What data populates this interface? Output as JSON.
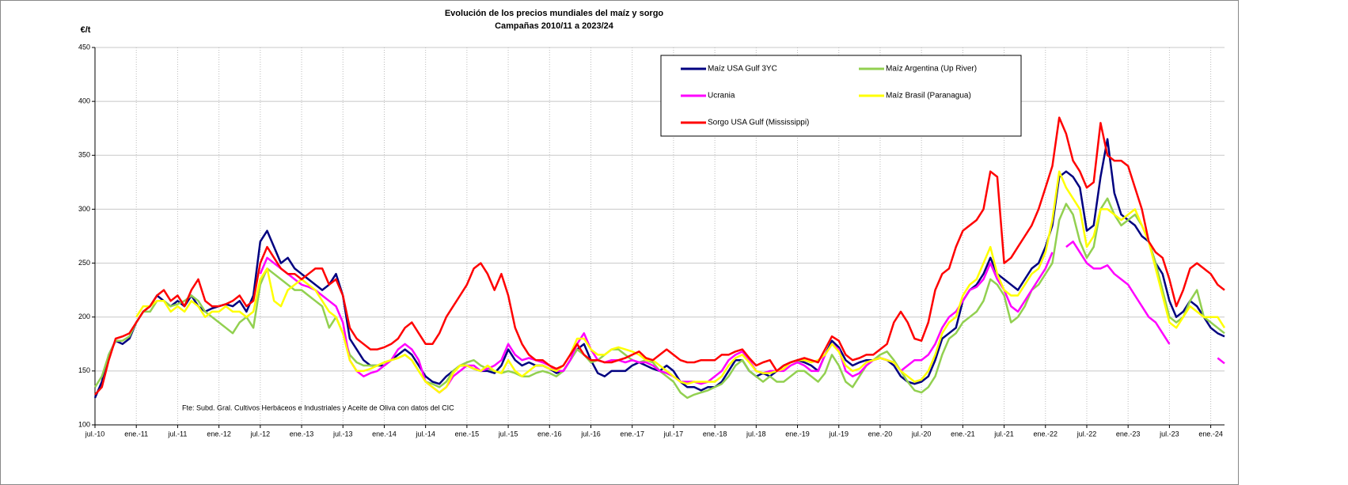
{
  "chart_data": {
    "type": "line",
    "title": "Evolución de los precios mundiales del maíz y sorgo",
    "subtitle": "Campañas 2010/11 a 2023/24",
    "y_label": "€/t",
    "note": "Fte: Subd. Gral. Cultivos Herbáceos e Industriales y Aceite de Oliva con datos del CIC",
    "ylim": [
      100,
      450
    ],
    "yticks": [
      100,
      150,
      200,
      250,
      300,
      350,
      400,
      450
    ],
    "grid": true,
    "legend": "top-right",
    "categories": [
      "jul.-10",
      null,
      null,
      null,
      null,
      null,
      "ene.-11",
      null,
      null,
      null,
      null,
      null,
      "jul.-11",
      null,
      null,
      null,
      null,
      null,
      "ene.-12",
      null,
      null,
      null,
      null,
      null,
      "jul.-12",
      null,
      null,
      null,
      null,
      null,
      "ene.-13",
      null,
      null,
      null,
      null,
      null,
      "jul.-13",
      null,
      null,
      null,
      null,
      null,
      "ene.-14",
      null,
      null,
      null,
      null,
      null,
      "jul.-14",
      null,
      null,
      null,
      null,
      null,
      "ene.-15",
      null,
      null,
      null,
      null,
      null,
      "jul.-15",
      null,
      null,
      null,
      null,
      null,
      "ene.-16",
      null,
      null,
      null,
      null,
      null,
      "jul.-16",
      null,
      null,
      null,
      null,
      null,
      "ene.-17",
      null,
      null,
      null,
      null,
      null,
      "jul.-17",
      null,
      null,
      null,
      null,
      null,
      "ene.-18",
      null,
      null,
      null,
      null,
      null,
      "jul.-18",
      null,
      null,
      null,
      null,
      null,
      "ene.-19",
      null,
      null,
      null,
      null,
      null,
      "jul.-19",
      null,
      null,
      null,
      null,
      null,
      "ene.-20",
      null,
      null,
      null,
      null,
      null,
      "jul.-20",
      null,
      null,
      null,
      null,
      null,
      "ene.-21",
      null,
      null,
      null,
      null,
      null,
      "jul.-21",
      null,
      null,
      null,
      null,
      null,
      "ene.-22",
      null,
      null,
      null,
      null,
      null,
      "jul.-22",
      null,
      null,
      null,
      null,
      null,
      "ene.-23",
      null,
      null,
      null,
      null,
      null,
      "jul.-23",
      null,
      null,
      null,
      null,
      null,
      "ene.-24",
      null,
      null
    ],
    "series": [
      {
        "name": "Maíz USA Gulf 3YC",
        "color": "#000080",
        "values": [
          125,
          140,
          165,
          178,
          175,
          180,
          195,
          205,
          210,
          220,
          215,
          210,
          215,
          210,
          220,
          210,
          205,
          208,
          210,
          212,
          210,
          215,
          205,
          220,
          270,
          280,
          265,
          250,
          255,
          245,
          240,
          235,
          230,
          225,
          230,
          240,
          220,
          180,
          170,
          160,
          155,
          155,
          155,
          160,
          165,
          170,
          165,
          155,
          145,
          140,
          138,
          145,
          150,
          155,
          155,
          152,
          150,
          150,
          148,
          155,
          170,
          160,
          155,
          158,
          155,
          155,
          152,
          148,
          150,
          160,
          170,
          175,
          160,
          148,
          145,
          150,
          150,
          150,
          155,
          158,
          155,
          152,
          150,
          155,
          150,
          140,
          135,
          135,
          132,
          135,
          135,
          140,
          150,
          160,
          160,
          150,
          145,
          148,
          145,
          150,
          155,
          158,
          160,
          158,
          155,
          150,
          165,
          178,
          172,
          160,
          155,
          158,
          160,
          160,
          162,
          160,
          155,
          145,
          140,
          138,
          140,
          145,
          160,
          180,
          185,
          190,
          215,
          225,
          230,
          240,
          255,
          240,
          235,
          230,
          225,
          235,
          245,
          250,
          265,
          285,
          330,
          335,
          330,
          320,
          280,
          285,
          330,
          365,
          315,
          295,
          290,
          285,
          275,
          270,
          250,
          240,
          215,
          200,
          205,
          215,
          210,
          200,
          190,
          185,
          182
        ]
      },
      {
        "name": "Maíz Argentina (Up River)",
        "color": "#92d050",
        "values": [
          135,
          145,
          165,
          178,
          178,
          182,
          195,
          205,
          205,
          215,
          215,
          210,
          212,
          215,
          220,
          215,
          205,
          200,
          195,
          190,
          185,
          195,
          200,
          190,
          230,
          245,
          240,
          235,
          230,
          225,
          225,
          220,
          215,
          210,
          190,
          200,
          185,
          165,
          158,
          155,
          155,
          155,
          158,
          160,
          162,
          165,
          160,
          150,
          140,
          138,
          135,
          140,
          150,
          155,
          158,
          160,
          155,
          152,
          150,
          148,
          150,
          148,
          145,
          145,
          148,
          150,
          148,
          145,
          150,
          160,
          170,
          165,
          158,
          160,
          165,
          170,
          170,
          165,
          160,
          158,
          160,
          158,
          150,
          145,
          140,
          130,
          125,
          128,
          130,
          132,
          135,
          138,
          145,
          155,
          160,
          150,
          145,
          140,
          145,
          140,
          140,
          145,
          150,
          150,
          145,
          140,
          148,
          165,
          155,
          140,
          135,
          145,
          155,
          160,
          165,
          168,
          160,
          150,
          140,
          132,
          130,
          135,
          145,
          165,
          180,
          185,
          195,
          200,
          205,
          215,
          235,
          230,
          220,
          195,
          200,
          210,
          225,
          230,
          240,
          250,
          290,
          305,
          295,
          270,
          255,
          265,
          300,
          310,
          295,
          285,
          290,
          295,
          285,
          270,
          250,
          225,
          200,
          195,
          200,
          215,
          225,
          200,
          195,
          190,
          185
        ]
      },
      {
        "name": "Ucrania",
        "color": "#ff00ff",
        "values": [
          null,
          null,
          null,
          null,
          null,
          null,
          null,
          null,
          null,
          null,
          null,
          null,
          null,
          null,
          null,
          null,
          null,
          null,
          null,
          null,
          null,
          null,
          null,
          null,
          240,
          255,
          250,
          245,
          240,
          235,
          230,
          228,
          225,
          220,
          215,
          210,
          195,
          160,
          150,
          145,
          148,
          150,
          155,
          160,
          170,
          175,
          170,
          160,
          140,
          135,
          130,
          135,
          145,
          150,
          155,
          155,
          150,
          152,
          155,
          160,
          175,
          165,
          160,
          162,
          160,
          158,
          155,
          150,
          150,
          160,
          175,
          185,
          170,
          160,
          158,
          160,
          160,
          158,
          160,
          158,
          158,
          155,
          150,
          148,
          145,
          140,
          140,
          140,
          138,
          140,
          145,
          150,
          160,
          165,
          168,
          160,
          150,
          148,
          150,
          150,
          150,
          155,
          158,
          155,
          150,
          150,
          165,
          175,
          170,
          150,
          145,
          148,
          155,
          160,
          162,
          160,
          158,
          150,
          155,
          160,
          160,
          165,
          175,
          190,
          200,
          205,
          215,
          225,
          228,
          235,
          250,
          235,
          225,
          210,
          205,
          215,
          225,
          235,
          245,
          260,
          null,
          265,
          270,
          260,
          250,
          245,
          245,
          248,
          240,
          235,
          230,
          220,
          210,
          200,
          195,
          185,
          175,
          null,
          null,
          null,
          null,
          null,
          null,
          162,
          157
        ]
      },
      {
        "name": "Maíz Brasil (Paranagua)",
        "color": "#ffff00",
        "values": [
          null,
          null,
          null,
          null,
          null,
          null,
          200,
          210,
          210,
          215,
          215,
          205,
          210,
          205,
          215,
          210,
          200,
          205,
          205,
          210,
          205,
          205,
          200,
          205,
          235,
          245,
          215,
          210,
          225,
          230,
          235,
          230,
          225,
          215,
          205,
          200,
          185,
          160,
          150,
          150,
          152,
          155,
          158,
          160,
          162,
          165,
          160,
          150,
          140,
          135,
          130,
          135,
          148,
          155,
          155,
          152,
          150,
          155,
          150,
          148,
          160,
          150,
          145,
          150,
          155,
          155,
          152,
          150,
          155,
          165,
          180,
          180,
          170,
          165,
          165,
          170,
          172,
          170,
          168,
          165,
          160,
          160,
          155,
          150,
          145,
          140,
          138,
          140,
          140,
          140,
          140,
          145,
          155,
          162,
          165,
          158,
          150,
          148,
          148,
          150,
          152,
          158,
          160,
          160,
          158,
          160,
          165,
          175,
          168,
          155,
          150,
          152,
          158,
          160,
          162,
          160,
          158,
          150,
          145,
          140,
          142,
          150,
          165,
          185,
          195,
          200,
          220,
          230,
          235,
          250,
          265,
          240,
          225,
          220,
          220,
          230,
          240,
          245,
          260,
          290,
          335,
          320,
          310,
          300,
          265,
          275,
          300,
          300,
          295,
          290,
          295,
          300,
          285,
          270,
          245,
          220,
          195,
          190,
          200,
          210,
          205,
          200,
          200,
          200,
          190
        ]
      },
      {
        "name": "Sorgo USA Gulf (Mississippi)",
        "color": "#ff0000",
        "values": [
          128,
          135,
          160,
          180,
          182,
          185,
          195,
          205,
          210,
          220,
          225,
          215,
          220,
          210,
          225,
          235,
          215,
          210,
          210,
          212,
          215,
          220,
          210,
          215,
          250,
          265,
          255,
          245,
          240,
          240,
          235,
          240,
          245,
          245,
          230,
          235,
          220,
          190,
          180,
          175,
          170,
          170,
          172,
          175,
          180,
          190,
          195,
          185,
          175,
          175,
          185,
          200,
          210,
          220,
          230,
          245,
          250,
          240,
          225,
          240,
          220,
          190,
          175,
          165,
          160,
          160,
          155,
          152,
          155,
          165,
          175,
          165,
          160,
          160,
          158,
          158,
          160,
          162,
          165,
          168,
          162,
          160,
          165,
          170,
          165,
          160,
          158,
          158,
          160,
          160,
          160,
          165,
          165,
          168,
          170,
          162,
          155,
          158,
          160,
          150,
          155,
          158,
          160,
          162,
          160,
          158,
          170,
          182,
          178,
          165,
          160,
          162,
          165,
          165,
          170,
          175,
          195,
          205,
          195,
          180,
          178,
          195,
          225,
          240,
          245,
          265,
          280,
          285,
          290,
          300,
          335,
          330,
          250,
          255,
          265,
          275,
          285,
          300,
          320,
          340,
          385,
          370,
          345,
          335,
          320,
          325,
          380,
          350,
          345,
          345,
          340,
          320,
          300,
          270,
          260,
          255,
          235,
          210,
          225,
          245,
          250,
          245,
          240,
          230,
          225
        ]
      }
    ]
  }
}
